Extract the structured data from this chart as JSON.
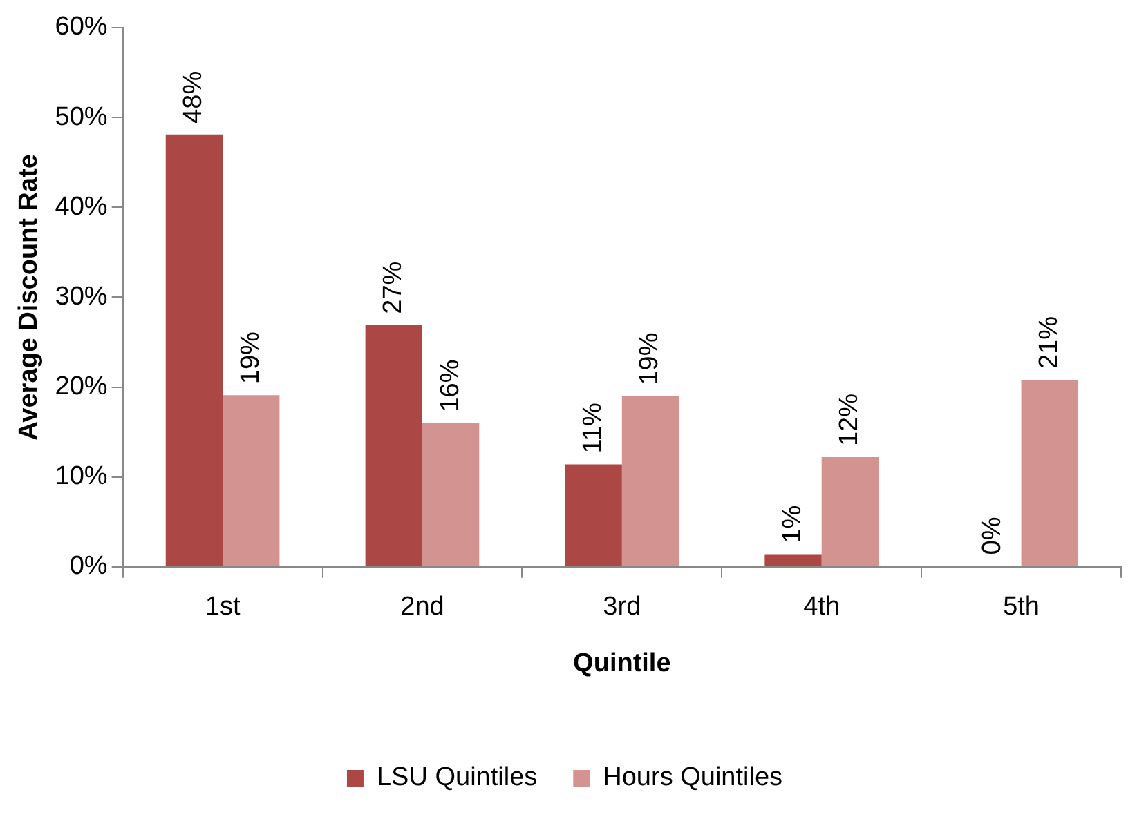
{
  "chart_data": {
    "type": "bar",
    "xlabel": "Quintile",
    "ylabel": "Average Discount Rate",
    "categories": [
      "1st",
      "2nd",
      "3rd",
      "4th",
      "5th"
    ],
    "series": [
      {
        "name": "LSU Quintiles",
        "color": "#ab4744",
        "values": [
          48.1,
          26.9,
          11.4,
          1.4,
          0.1
        ],
        "value_labels": [
          "48%",
          "27%",
          "11%",
          "1%",
          "0%"
        ]
      },
      {
        "name": "Hours Quintiles",
        "color": "#d39391",
        "values": [
          19.1,
          16.0,
          19.0,
          12.2,
          20.8
        ],
        "value_labels": [
          "19%",
          "16%",
          "19%",
          "12%",
          "21%"
        ]
      }
    ],
    "ylim": [
      0,
      60
    ],
    "yticks": [
      {
        "value": 0,
        "label": "0%"
      },
      {
        "value": 10,
        "label": "10%"
      },
      {
        "value": 20,
        "label": "20%"
      },
      {
        "value": 30,
        "label": "30%"
      },
      {
        "value": 40,
        "label": "40%"
      },
      {
        "value": 50,
        "label": "50%"
      },
      {
        "value": 60,
        "label": "60%"
      }
    ],
    "grid": false,
    "legend": "bottom"
  }
}
